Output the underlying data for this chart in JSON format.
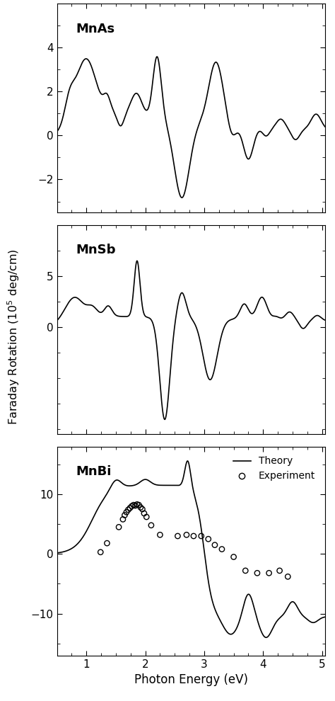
{
  "ylabel": "Faraday Rotation (10$^5$ deg/cm)",
  "xlabel": "Photon Energy (eV)",
  "panel1_label": "MnAs",
  "panel1_ylim": [
    -3.5,
    6.0
  ],
  "panel1_yticks": [
    -2,
    0,
    2,
    4
  ],
  "panel2_label": "MnSb",
  "panel2_ylim": [
    -10.5,
    10.0
  ],
  "panel2_yticks": [
    0,
    5
  ],
  "panel3_label": "MnBi",
  "panel3_ylim": [
    -17,
    18
  ],
  "panel3_yticks": [
    -10,
    0,
    10
  ],
  "xlim": [
    0.5,
    5.05
  ],
  "xticks": [
    1,
    2,
    3,
    4,
    5
  ],
  "xtick_labels": [
    "1",
    "2",
    "3",
    "4",
    "5"
  ],
  "mnbi_exp_x": [
    1.24,
    1.35,
    1.55,
    1.62,
    1.65,
    1.68,
    1.71,
    1.74,
    1.77,
    1.8,
    1.83,
    1.86,
    1.89,
    1.92,
    1.95,
    1.98,
    2.02,
    2.1,
    2.25,
    2.55,
    2.7,
    2.82,
    2.95,
    3.07,
    3.18,
    3.3,
    3.5,
    3.7,
    3.9,
    4.1,
    4.28,
    4.42
  ],
  "mnbi_exp_y": [
    0.3,
    1.8,
    4.5,
    5.8,
    6.5,
    7.0,
    7.4,
    7.7,
    8.0,
    8.2,
    8.1,
    8.3,
    8.2,
    7.8,
    7.5,
    6.8,
    6.2,
    4.8,
    3.2,
    3.0,
    3.2,
    3.0,
    3.0,
    2.5,
    1.5,
    0.8,
    -0.5,
    -2.8,
    -3.2,
    -3.2,
    -2.8,
    -3.8
  ],
  "line_color": "black",
  "bg_color": "white"
}
